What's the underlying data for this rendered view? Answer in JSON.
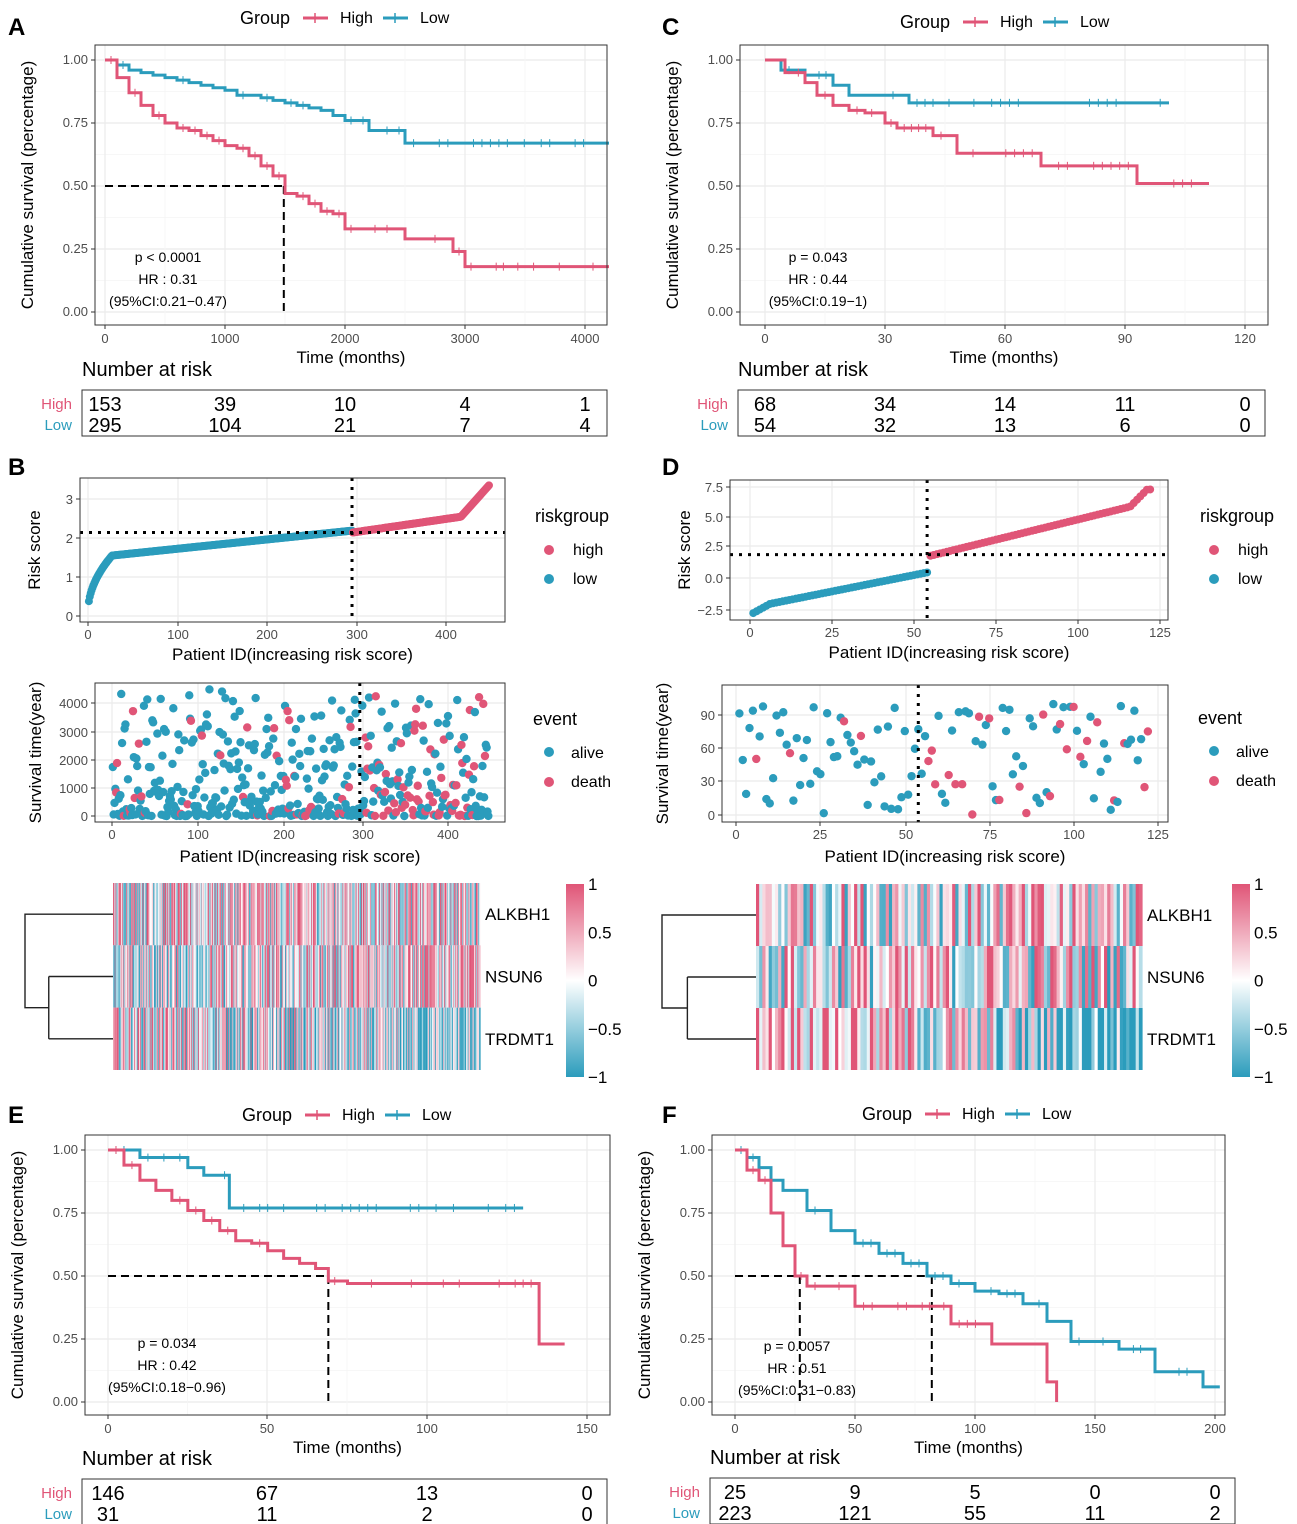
{
  "colors": {
    "high": "#e05577",
    "low": "#2b9cbc",
    "grid": "#ebebeb",
    "gridMinor": "#f5f5f5"
  },
  "km_panels": [
    {
      "tag": "A",
      "legend_title": "Group",
      "legend_high": "High",
      "legend_low": "Low",
      "ylabel": "Cumulative survival (percentage)",
      "xlabel": "Time (months)",
      "yticks": [
        "0.00",
        "0.25",
        "0.50",
        "0.75",
        "1.00"
      ],
      "xticks": [
        "0",
        "1000",
        "2000",
        "3000",
        "4000"
      ],
      "stats": [
        "p < 0.0001",
        "HR : 0.31",
        "(95%CI:0.21−0.47)"
      ],
      "risk_title": "Number at risk",
      "risk_high_label": "High",
      "risk_low_label": "Low",
      "risk_high": [
        "153",
        "39",
        "10",
        "4",
        "1"
      ],
      "risk_low": [
        "295",
        "104",
        "21",
        "7",
        "4"
      ]
    },
    {
      "tag": "C",
      "legend_title": "Group",
      "legend_high": "High",
      "legend_low": "Low",
      "ylabel": "Cumulative survival (percentage)",
      "xlabel": "Time (months)",
      "yticks": [
        "0.00",
        "0.25",
        "0.50",
        "0.75",
        "1.00"
      ],
      "xticks": [
        "0",
        "30",
        "60",
        "90",
        "120"
      ],
      "stats": [
        "p = 0.043",
        "HR : 0.44",
        "(95%CI:0.19−1)"
      ],
      "risk_title": "Number at risk",
      "risk_high_label": "High",
      "risk_low_label": "Low",
      "risk_high": [
        "68",
        "34",
        "14",
        "11",
        "0"
      ],
      "risk_low": [
        "54",
        "32",
        "13",
        "6",
        "0"
      ]
    },
    {
      "tag": "E",
      "legend_title": "Group",
      "legend_high": "High",
      "legend_low": "Low",
      "ylabel": "Cumulative survival (percentage)",
      "xlabel": "Time (months)",
      "yticks": [
        "0.00",
        "0.25",
        "0.50",
        "0.75",
        "1.00"
      ],
      "xticks": [
        "0",
        "50",
        "100",
        "150"
      ],
      "stats": [
        "p = 0.034",
        "HR : 0.42",
        "(95%CI:0.18−0.96)"
      ],
      "risk_title": "Number at risk",
      "risk_high_label": "High",
      "risk_low_label": "Low",
      "risk_high": [
        "146",
        "67",
        "13",
        "0"
      ],
      "risk_low": [
        "31",
        "11",
        "2",
        "0"
      ]
    },
    {
      "tag": "F",
      "legend_title": "Group",
      "legend_high": "High",
      "legend_low": "Low",
      "ylabel": "Cumulative survival (percentage)",
      "xlabel": "Time (months)",
      "yticks": [
        "0.00",
        "0.25",
        "0.50",
        "0.75",
        "1.00"
      ],
      "xticks": [
        "0",
        "50",
        "100",
        "150",
        "200"
      ],
      "stats": [
        "p = 0.0057",
        "HR : 0.51",
        "(95%CI:0.31−0.83)"
      ],
      "risk_title": "Number at risk",
      "risk_high_label": "High",
      "risk_low_label": "Low",
      "risk_high": [
        "25",
        "9",
        "5",
        "0",
        "0"
      ],
      "risk_low": [
        "223",
        "121",
        "55",
        "11",
        "2"
      ]
    }
  ],
  "risk_panels": [
    {
      "tag": "B",
      "score_ylabel": "Risk score",
      "score_xlabel": "Patient ID(increasing risk score)",
      "score_yticks": [
        "0",
        "1",
        "2",
        "3"
      ],
      "score_xticks": [
        "0",
        "100",
        "200",
        "300",
        "400"
      ],
      "legend1_title": "riskgroup",
      "legend1_high": "high",
      "legend1_low": "low",
      "surv_ylabel": "Survival time(year)",
      "surv_xlabel": "Patient ID(increasing risk score)",
      "surv_yticks": [
        "0",
        "1000",
        "2000",
        "3000",
        "4000"
      ],
      "surv_xticks": [
        "0",
        "100",
        "200",
        "300",
        "400"
      ],
      "legend2_title": "event",
      "legend2_alive": "alive",
      "legend2_death": "death",
      "genes": [
        "ALKBH1",
        "NSUN6",
        "TRDMT1"
      ],
      "scale_ticks": [
        "1",
        "0.5",
        "0",
        "−0.5",
        "−1"
      ]
    },
    {
      "tag": "D",
      "score_ylabel": "Risk score",
      "score_xlabel": "Patient ID(increasing risk score)",
      "score_yticks": [
        "−2.5",
        "0.0",
        "2.5",
        "5.0",
        "7.5"
      ],
      "score_xticks": [
        "0",
        "25",
        "50",
        "75",
        "100",
        "125"
      ],
      "legend1_title": "riskgroup",
      "legend1_high": "high",
      "legend1_low": "low",
      "surv_ylabel": "Survival time(year)",
      "surv_xlabel": "Patient ID(increasing risk score)",
      "surv_yticks": [
        "0",
        "30",
        "60",
        "90"
      ],
      "surv_xticks": [
        "0",
        "25",
        "50",
        "75",
        "100",
        "125"
      ],
      "legend2_title": "event",
      "legend2_alive": "alive",
      "legend2_death": "death",
      "genes": [
        "ALKBH1",
        "NSUN6",
        "TRDMT1"
      ],
      "scale_ticks": [
        "1",
        "0.5",
        "0",
        "−0.5",
        "−1"
      ]
    }
  ],
  "chart_data": [
    {
      "panel": "A",
      "type": "line",
      "title": "",
      "xlabel": "Time (months)",
      "ylabel": "Cumulative survival (percentage)",
      "xlim": [
        0,
        4200
      ],
      "ylim": [
        0,
        1
      ],
      "series": [
        {
          "name": "High",
          "x": [
            0,
            100,
            200,
            300,
            400,
            500,
            600,
            700,
            800,
            900,
            1000,
            1100,
            1200,
            1300,
            1400,
            1500,
            1600,
            1700,
            1800,
            1900,
            2000,
            2100,
            2200,
            2300,
            2400,
            2500,
            2600,
            2700,
            2800,
            2900,
            3000,
            3100,
            3200,
            3500,
            4000,
            4200
          ],
          "y": [
            1.0,
            0.93,
            0.87,
            0.82,
            0.78,
            0.75,
            0.73,
            0.72,
            0.7,
            0.68,
            0.66,
            0.65,
            0.62,
            0.58,
            0.54,
            0.47,
            0.46,
            0.43,
            0.4,
            0.39,
            0.33,
            0.33,
            0.33,
            0.33,
            0.33,
            0.29,
            0.29,
            0.29,
            0.29,
            0.24,
            0.18,
            0.18,
            0.18,
            0.18,
            0.18,
            0.18
          ]
        },
        {
          "name": "Low",
          "x": [
            0,
            100,
            200,
            300,
            400,
            500,
            600,
            700,
            800,
            900,
            1000,
            1100,
            1200,
            1300,
            1400,
            1500,
            1600,
            1700,
            1800,
            1900,
            2000,
            2100,
            2200,
            2300,
            2400,
            2500,
            3000,
            4200
          ],
          "y": [
            1.0,
            0.98,
            0.96,
            0.95,
            0.94,
            0.93,
            0.92,
            0.91,
            0.9,
            0.89,
            0.88,
            0.86,
            0.86,
            0.85,
            0.84,
            0.83,
            0.82,
            0.81,
            0.8,
            0.78,
            0.76,
            0.76,
            0.72,
            0.72,
            0.72,
            0.67,
            0.67,
            0.67
          ]
        }
      ],
      "median_high": 1490
    },
    {
      "panel": "C",
      "type": "line",
      "title": "",
      "xlabel": "Time (months)",
      "ylabel": "Cumulative survival (percentage)",
      "xlim": [
        0,
        120
      ],
      "ylim": [
        0,
        1
      ],
      "series": [
        {
          "name": "High",
          "x": [
            0,
            5,
            10,
            13,
            17,
            21,
            25,
            30,
            33,
            42,
            48,
            58,
            69,
            80,
            93,
            100,
            111
          ],
          "y": [
            1.0,
            0.95,
            0.91,
            0.86,
            0.82,
            0.8,
            0.79,
            0.75,
            0.73,
            0.7,
            0.63,
            0.63,
            0.58,
            0.58,
            0.51,
            0.51,
            0.51
          ]
        },
        {
          "name": "Low",
          "x": [
            0,
            4,
            10,
            17,
            21,
            30,
            36,
            50,
            70,
            90,
            101
          ],
          "y": [
            1.0,
            0.96,
            0.94,
            0.9,
            0.86,
            0.86,
            0.83,
            0.83,
            0.83,
            0.83,
            0.83
          ]
        }
      ]
    },
    {
      "panel": "E",
      "type": "line",
      "title": "",
      "xlabel": "Time (months)",
      "ylabel": "Cumulative survival (percentage)",
      "xlim": [
        0,
        155
      ],
      "ylim": [
        0,
        1
      ],
      "series": [
        {
          "name": "High",
          "x": [
            0,
            5,
            10,
            15,
            20,
            25,
            30,
            35,
            40,
            45,
            50,
            55,
            60,
            65,
            69,
            75,
            80,
            100,
            120,
            135,
            143
          ],
          "y": [
            1.0,
            0.94,
            0.88,
            0.84,
            0.8,
            0.76,
            0.72,
            0.68,
            0.64,
            0.63,
            0.6,
            0.57,
            0.55,
            0.53,
            0.48,
            0.47,
            0.47,
            0.47,
            0.47,
            0.23,
            0.23
          ]
        },
        {
          "name": "Low",
          "x": [
            0,
            10,
            20,
            25,
            30,
            35,
            38,
            40,
            60,
            100,
            130
          ],
          "y": [
            1.0,
            0.97,
            0.97,
            0.93,
            0.9,
            0.9,
            0.77,
            0.77,
            0.77,
            0.77,
            0.77
          ]
        }
      ],
      "median_high": 69
    },
    {
      "panel": "F",
      "type": "line",
      "title": "",
      "xlabel": "Time (months)",
      "ylabel": "Cumulative survival (percentage)",
      "xlim": [
        0,
        205
      ],
      "ylim": [
        0,
        1
      ],
      "series": [
        {
          "name": "High",
          "x": [
            0,
            5,
            10,
            15,
            20,
            25,
            30,
            50,
            75,
            90,
            107,
            130,
            134
          ],
          "y": [
            1.0,
            0.92,
            0.88,
            0.75,
            0.62,
            0.5,
            0.46,
            0.38,
            0.38,
            0.31,
            0.23,
            0.08,
            0.0
          ]
        },
        {
          "name": "Low",
          "x": [
            0,
            5,
            10,
            15,
            20,
            30,
            40,
            50,
            60,
            70,
            80,
            90,
            100,
            110,
            120,
            130,
            140,
            150,
            160,
            175,
            195,
            202
          ],
          "y": [
            1.0,
            0.97,
            0.93,
            0.88,
            0.84,
            0.76,
            0.68,
            0.63,
            0.59,
            0.55,
            0.5,
            0.47,
            0.44,
            0.43,
            0.39,
            0.32,
            0.24,
            0.24,
            0.21,
            0.12,
            0.06,
            0.06
          ]
        }
      ],
      "median_high": 27,
      "median_low": 82
    },
    {
      "panel": "B",
      "type": "scatter",
      "title": "",
      "xlabel": "Patient ID(increasing risk score)",
      "ylabel": "Risk score",
      "xlim": [
        0,
        460
      ],
      "ylim": [
        0,
        3.4
      ],
      "n": 448,
      "cutoff_index": 295,
      "cutoff_score": 2.14,
      "min_score": 0.05,
      "max_score": 3.35
    },
    {
      "panel": "D",
      "type": "scatter",
      "title": "",
      "xlabel": "Patient ID(increasing risk score)",
      "ylabel": "Risk score",
      "xlim": [
        0,
        127
      ],
      "ylim": [
        -3,
        7.5
      ],
      "n": 122,
      "cutoff_index": 54,
      "cutoff_score": 2.0,
      "min_score": -2.9,
      "max_score": 7.3
    }
  ]
}
